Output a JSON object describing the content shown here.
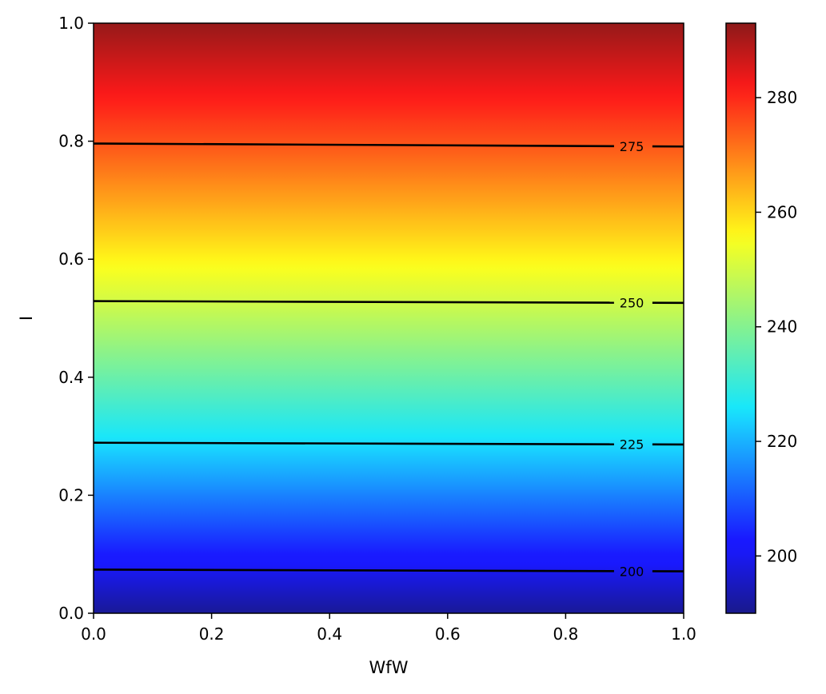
{
  "chart_data": {
    "type": "heatmap",
    "title": "",
    "xlabel": "WfW",
    "ylabel": "I",
    "xlim": [
      0.0,
      1.0
    ],
    "ylim": [
      0.0,
      1.0
    ],
    "x_ticks": [
      "0.0",
      "0.2",
      "0.4",
      "0.6",
      "0.8",
      "1.0"
    ],
    "y_ticks": [
      "0.0",
      "0.2",
      "0.4",
      "0.6",
      "0.8",
      "1.0"
    ],
    "colormap": "jet",
    "colorbar": {
      "range": [
        190,
        293
      ],
      "ticks": [
        "200",
        "220",
        "240",
        "260",
        "280"
      ]
    },
    "contours": [
      {
        "label": "200",
        "value": 200,
        "y_at_x0": 0.074,
        "y_at_x1": 0.071
      },
      {
        "label": "225",
        "value": 225,
        "y_at_x0": 0.289,
        "y_at_x1": 0.286
      },
      {
        "label": "250",
        "value": 250,
        "y_at_x0": 0.529,
        "y_at_x1": 0.526
      },
      {
        "label": "275",
        "value": 275,
        "y_at_x0": 0.796,
        "y_at_x1": 0.791
      }
    ],
    "grid": false,
    "legend": "none"
  }
}
